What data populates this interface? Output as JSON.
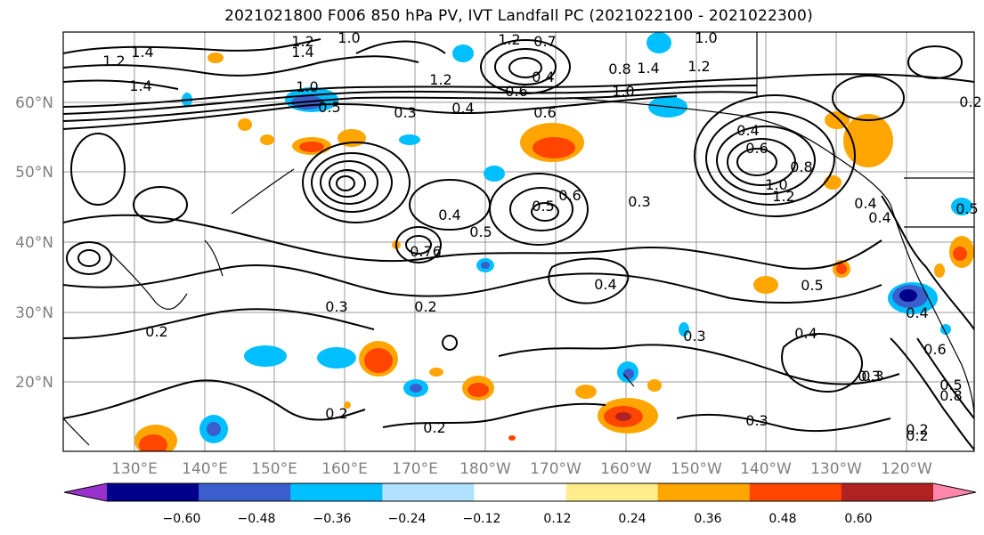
{
  "title": "2021021800 F006 850 hPa PV, IVT Landfall PC (2021022100 - 2021022300)",
  "map": {
    "lat_labels": [
      "60°N",
      "50°N",
      "40°N",
      "30°N",
      "20°N"
    ],
    "lon_labels": [
      "130°E",
      "140°E",
      "150°E",
      "160°E",
      "170°E",
      "180°W",
      "170°W",
      "160°W",
      "150°W",
      "140°W",
      "130°W",
      "120°W"
    ],
    "contour_labels": [
      "1.4",
      "1.2",
      "1.2",
      "1.4",
      "1.4",
      "1.0",
      "1.0",
      "1.2",
      "0.7",
      "0.4",
      "0.6",
      "0.4",
      "1.2",
      "1.4",
      "1.0",
      "1.2",
      "1.0",
      "0.8",
      "0.6",
      "0.5",
      "0.3",
      "0.4",
      "0.6",
      "0.5",
      "0.8",
      "1.0",
      "1.2",
      "0.4",
      "0.5",
      "0.6",
      "0.76",
      "0.4",
      "0.3",
      "0.4",
      "0.5",
      "0.3",
      "0.2",
      "0.2",
      "0.3",
      "0.4",
      "0.5",
      "0.4",
      "0.3",
      "0.2",
      "0.2",
      "0.3",
      "0.2",
      "0.4",
      "0.6",
      "0.8",
      "0.2",
      "0.2",
      "0.3",
      "0.5"
    ],
    "contour_color": "#000000",
    "grid_color": "#999999"
  },
  "colorbar": {
    "ticks": [
      "−0.60",
      "−0.48",
      "−0.36",
      "−0.24",
      "−0.12",
      "0.12",
      "0.24",
      "0.36",
      "0.48",
      "0.60"
    ],
    "levels": [
      -0.72,
      -0.6,
      -0.48,
      -0.36,
      -0.24,
      -0.12,
      0.12,
      0.24,
      0.36,
      0.48,
      0.6,
      0.72
    ],
    "colors": [
      "#9932cc",
      "#00008b",
      "#3a5fcd",
      "#00bfff",
      "#b0e2ff",
      "#ffffff",
      "#ffec8b",
      "#ffa500",
      "#ff4500",
      "#b22222",
      "#ff88aa"
    ]
  }
}
